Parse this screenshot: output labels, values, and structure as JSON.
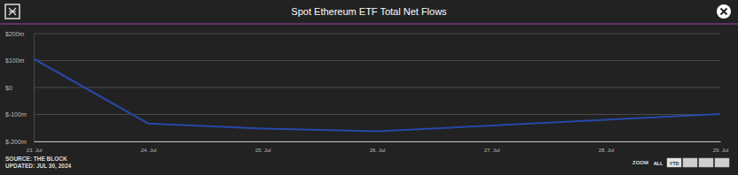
{
  "chart_data": {
    "type": "line",
    "title": "Spot Ethereum ETF Total Net Flows",
    "x": [
      23,
      24,
      25,
      26,
      29
    ],
    "values": [
      106.6,
      -133.3,
      -152.3,
      -162.7,
      -98.3
    ],
    "color": "#2748a8",
    "xlim": [
      23,
      29
    ],
    "xticks": [
      {
        "value": 23,
        "label": "23. Jul"
      },
      {
        "value": 24,
        "label": "24. Jul"
      },
      {
        "value": 25,
        "label": "25. Jul"
      },
      {
        "value": 26,
        "label": "26. Jul"
      },
      {
        "value": 27,
        "label": "27. Jul"
      },
      {
        "value": 28,
        "label": "28. Jul"
      },
      {
        "value": 29,
        "label": "29. Jul"
      }
    ],
    "ylim": [
      -200,
      200
    ],
    "yticks": [
      {
        "value": 200,
        "label": "$200m"
      },
      {
        "value": 100,
        "label": "$100m"
      },
      {
        "value": 0,
        "label": "$0"
      },
      {
        "value": -100,
        "label": "$-100m"
      },
      {
        "value": -200,
        "label": "$-200m"
      }
    ],
    "grid": true
  },
  "footer": {
    "source": "SOURCE: THE BLOCK",
    "updated": "UPDATED: JUL 30, 2024",
    "zoom_label": "ZOOM",
    "zoom_buttons": [
      "ALL",
      "YTD"
    ]
  }
}
